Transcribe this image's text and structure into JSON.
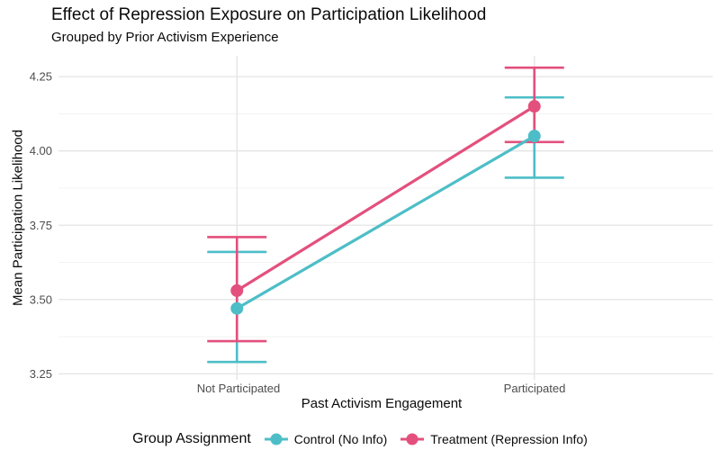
{
  "title": "Effect of Repression Exposure on Participation Likelihood",
  "subtitle": "Grouped by Prior Activism Experience",
  "chart_data": {
    "type": "line",
    "variant": "group means with 95% CI error bars (point-range)",
    "title": "Effect of Repression Exposure on Participation Likelihood",
    "subtitle": "Grouped by Prior Activism Experience",
    "xlabel": "Past Activism Engagement",
    "ylabel": "Mean Participation Likelihood",
    "categories": [
      "Not Participated",
      "Participated"
    ],
    "ylim": [
      3.23,
      4.32
    ],
    "yticks": [
      3.25,
      3.5,
      3.75,
      4.0,
      4.25
    ],
    "ytick_labels": [
      "3.25",
      "3.50",
      "3.75",
      "4.00",
      "4.25"
    ],
    "yminor": [
      3.375,
      3.625,
      3.875,
      4.125
    ],
    "grid": true,
    "legend": {
      "title": "Group Assignment",
      "position": "bottom"
    },
    "series": [
      {
        "name": "Control (No Info)",
        "color": "#4DBEC7",
        "means": [
          3.47,
          4.05
        ],
        "ci_low": [
          3.29,
          3.91
        ],
        "ci_high": [
          3.66,
          4.18
        ]
      },
      {
        "name": "Treatment (Repression Info)",
        "color": "#E3507D",
        "means": [
          3.53,
          4.15
        ],
        "ci_low": [
          3.36,
          4.03
        ],
        "ci_high": [
          3.71,
          4.28
        ]
      }
    ],
    "colors": {
      "major_grid": "#e4e4e4",
      "minor_grid": "#f1f1f1",
      "tick_text": "#4d4d4d"
    }
  }
}
